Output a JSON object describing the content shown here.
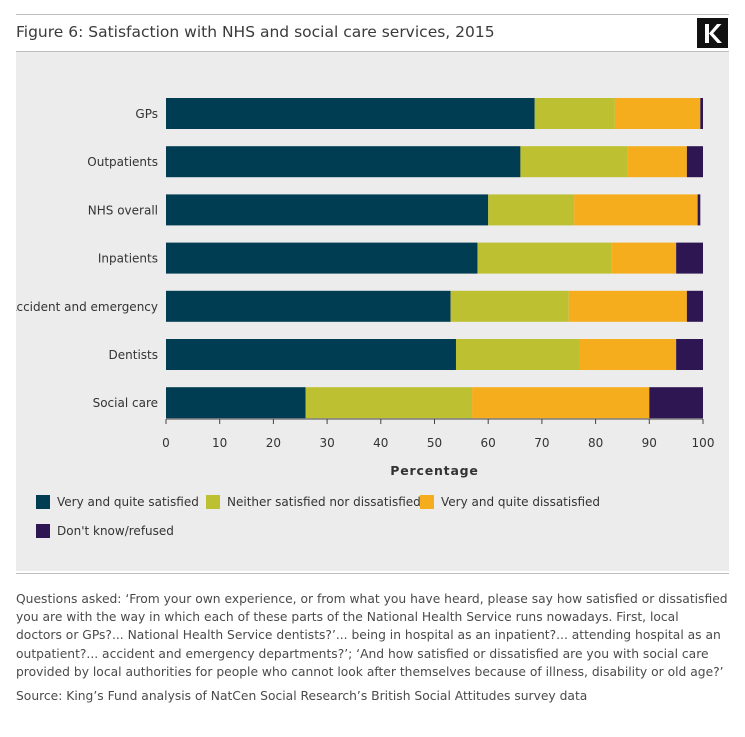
{
  "title": "Figure 6: Satisfaction with NHS and social care services, 2015",
  "logo": {
    "letter": "K",
    "icon": "kings-fund-k-logo",
    "background": "#111111"
  },
  "chart_data": {
    "type": "bar",
    "orientation": "horizontal",
    "stacked": true,
    "categories": [
      "GPs",
      "Outpatients",
      "NHS overall",
      "Inpatients",
      "Accident and emergency",
      "Dentists",
      "Social care"
    ],
    "series": [
      {
        "name": "Very and quite satisfied",
        "color": "#003d52",
        "values": [
          69,
          66,
          60,
          58,
          53,
          54,
          26
        ]
      },
      {
        "name": "Neither satisfied nor dissatisfied",
        "color": "#bdc031",
        "values": [
          15,
          20,
          16,
          25,
          22,
          23,
          31
        ]
      },
      {
        "name": "Very and quite dissatisfied",
        "color": "#f5ad1d",
        "values": [
          16,
          11,
          23,
          12,
          22,
          18,
          33
        ]
      },
      {
        "name": "Don't know/refused",
        "color": "#2d1652",
        "values": [
          0.5,
          3,
          0.5,
          5,
          3,
          5,
          10
        ]
      }
    ],
    "xlabel": "Percentage",
    "ylabel": "",
    "xlim": [
      0,
      100
    ],
    "xticks": [
      0,
      10,
      20,
      30,
      40,
      50,
      60,
      70,
      80,
      90,
      100
    ],
    "legend": "bottom-left",
    "grid": false
  },
  "notes": "Questions asked: ‘From your own experience, or from what you have heard, please say how satisfied or dissatisfied you are with the way in which each of these parts of the National Health Service runs nowadays. First, local doctors or GPs?... National Health Service dentists?’... being in hospital as an inpatient?... attending hospital as an outpatient?... accident and emergency departments?’; ‘And how satisfied or dissatisfied are you with social care provided by local authorities for people who cannot look after themselves because of illness, disability or old age?’",
  "source": "Source: King’s Fund analysis of NatCen Social Research’s British Social Attitudes survey data",
  "colors": {
    "panel_background": "#ececec",
    "rule": "#bdbdbd"
  }
}
